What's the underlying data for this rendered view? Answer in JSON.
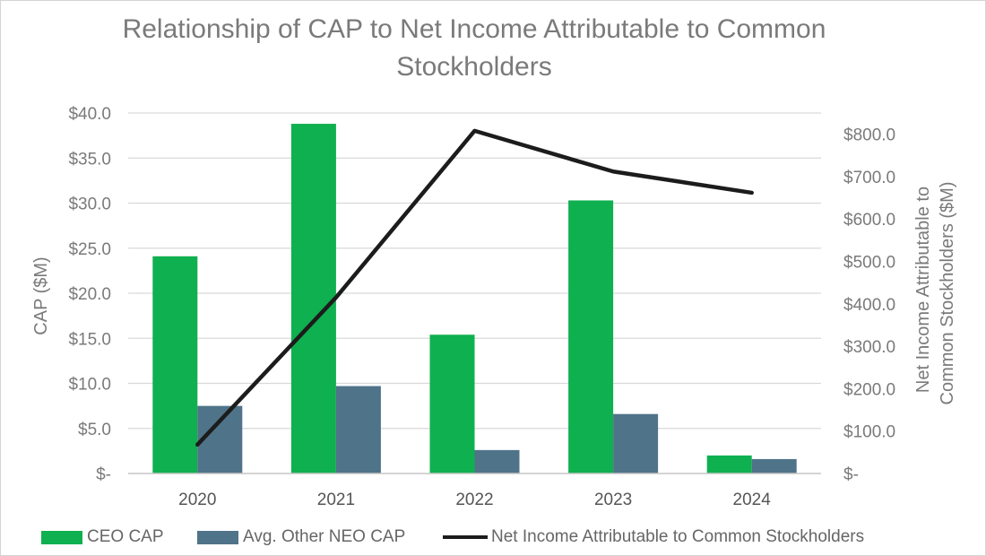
{
  "chart_data": {
    "type": "bar",
    "title": [
      "Relationship of CAP to Net Income Attributable to Common",
      "Stockholders"
    ],
    "categories": [
      "2020",
      "2021",
      "2022",
      "2023",
      "2024"
    ],
    "series": [
      {
        "name": "CEO CAP",
        "type": "bar",
        "axis": "left",
        "color": "#0fb04f",
        "values": [
          24.1,
          38.8,
          15.4,
          30.3,
          2.0
        ]
      },
      {
        "name": "Avg. Other NEO CAP",
        "type": "bar",
        "axis": "left",
        "color": "#4f7389",
        "values": [
          7.5,
          9.7,
          2.6,
          6.6,
          1.6
        ]
      },
      {
        "name": "Net Income Attributable to Common Stockholders",
        "type": "line",
        "axis": "right",
        "color": "#1c1c1c",
        "values": [
          68,
          415,
          808,
          712,
          662
        ]
      }
    ],
    "y_left": {
      "label": "CAP ($M)",
      "range": [
        0,
        40
      ],
      "ticks": [
        0,
        5,
        10,
        15,
        20,
        25,
        30,
        35,
        40
      ],
      "tick_labels": [
        "$-",
        "$5.0",
        "$10.0",
        "$15.0",
        "$20.0",
        "$25.0",
        "$30.0",
        "$35.0",
        "$40.0"
      ]
    },
    "y_right": {
      "label": [
        "Net Income Attributable to",
        "Common Stockholders ($M)"
      ],
      "range": [
        0,
        850
      ],
      "ticks": [
        0,
        100,
        200,
        300,
        400,
        500,
        600,
        700,
        800
      ],
      "tick_labels": [
        "$-",
        "$100.0",
        "$200.0",
        "$300.0",
        "$400.0",
        "$500.0",
        "$600.0",
        "$700.0",
        "$800.0"
      ]
    },
    "grid": true,
    "legend_position": "bottom"
  }
}
